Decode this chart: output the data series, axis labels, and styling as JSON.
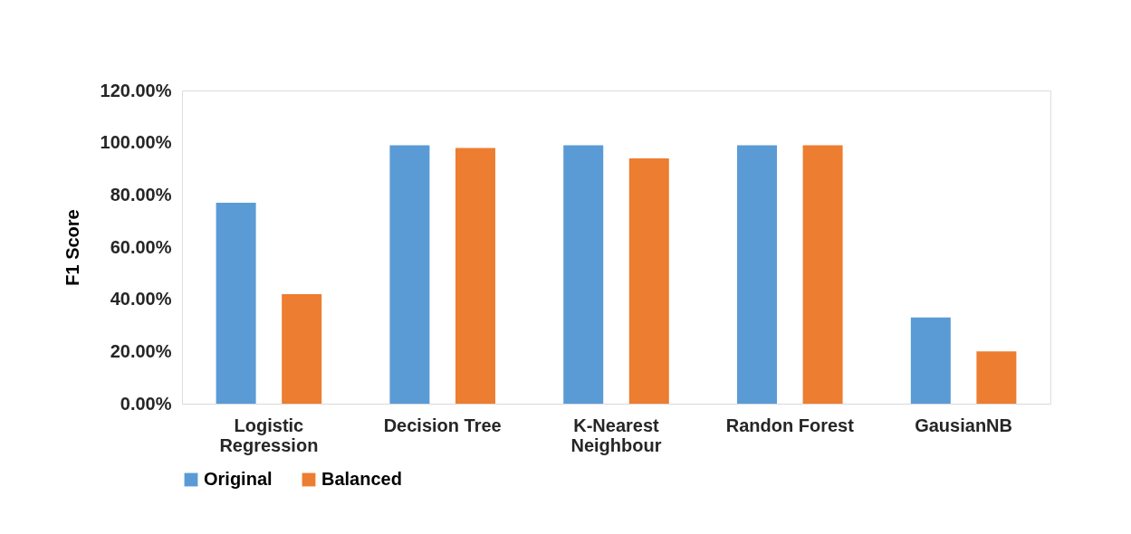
{
  "chart_data": {
    "type": "bar",
    "ylabel": "F1 Score",
    "categories": [
      "Logistic Regression",
      "Decision Tree",
      "K-Nearest Neighbour",
      "Randon Forest",
      "GausianNB"
    ],
    "series": [
      {
        "name": "Original",
        "color": "#5b9bd5",
        "values": [
          77,
          99,
          99,
          99,
          33
        ]
      },
      {
        "name": "Balanced",
        "color": "#ed7d31",
        "values": [
          42,
          98,
          94,
          99,
          20
        ]
      }
    ],
    "ylim": [
      0,
      120
    ],
    "yticks": [
      {
        "value": 0,
        "label": "0.00%"
      },
      {
        "value": 20,
        "label": "20.00%"
      },
      {
        "value": 40,
        "label": "40.00%"
      },
      {
        "value": 60,
        "label": "60.00%"
      },
      {
        "value": 80,
        "label": "80.00%"
      },
      {
        "value": 100,
        "label": "100.00%"
      },
      {
        "value": 120,
        "label": "120.00%"
      }
    ],
    "grid": false,
    "legend": "bottom"
  }
}
